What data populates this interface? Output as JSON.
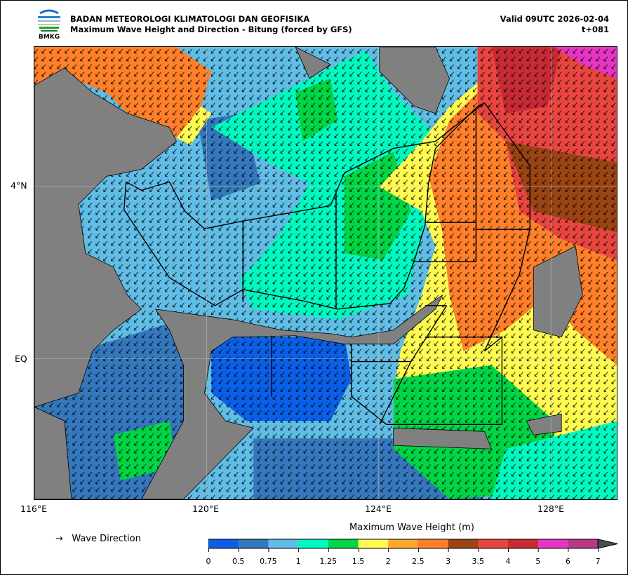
{
  "header": {
    "agency": "BADAN METEOROLOGI KLIMATOLOGI DAN GEOFISIKA",
    "title": "Maximum Wave Height and Direction - Bitung (forced by GFS)",
    "valid": "Valid 09UTC 2026-02-04",
    "lead": "t+081",
    "logo_text": "BMKG"
  },
  "axes": {
    "lon_ticks": [
      "116°E",
      "120°E",
      "124°E",
      "128°E"
    ],
    "lat_ticks": [
      "4°N",
      "EQ"
    ]
  },
  "legend": {
    "arrow_symbol": "→",
    "arrow_label": "Wave Direction"
  },
  "colorbar": {
    "title": "Maximum Wave Height (m)",
    "ticks": [
      "0",
      "0.5",
      "0.75",
      "1",
      "1.25",
      "1.5",
      "2",
      "2.5",
      "3",
      "3.5",
      "4",
      "5",
      "6",
      "7"
    ],
    "colors": [
      "#0a5fe6",
      "#3577bd",
      "#5fbde6",
      "#00f9c0",
      "#00d545",
      "#fffb50",
      "#ffa830",
      "#ff7f2a",
      "#9a4313",
      "#e84540",
      "#c82a35",
      "#e535c5",
      "#b83a82"
    ],
    "extend_color": "#4a4e52"
  },
  "map_colors": {
    "land": "#808080",
    "boundary": "#000000"
  }
}
